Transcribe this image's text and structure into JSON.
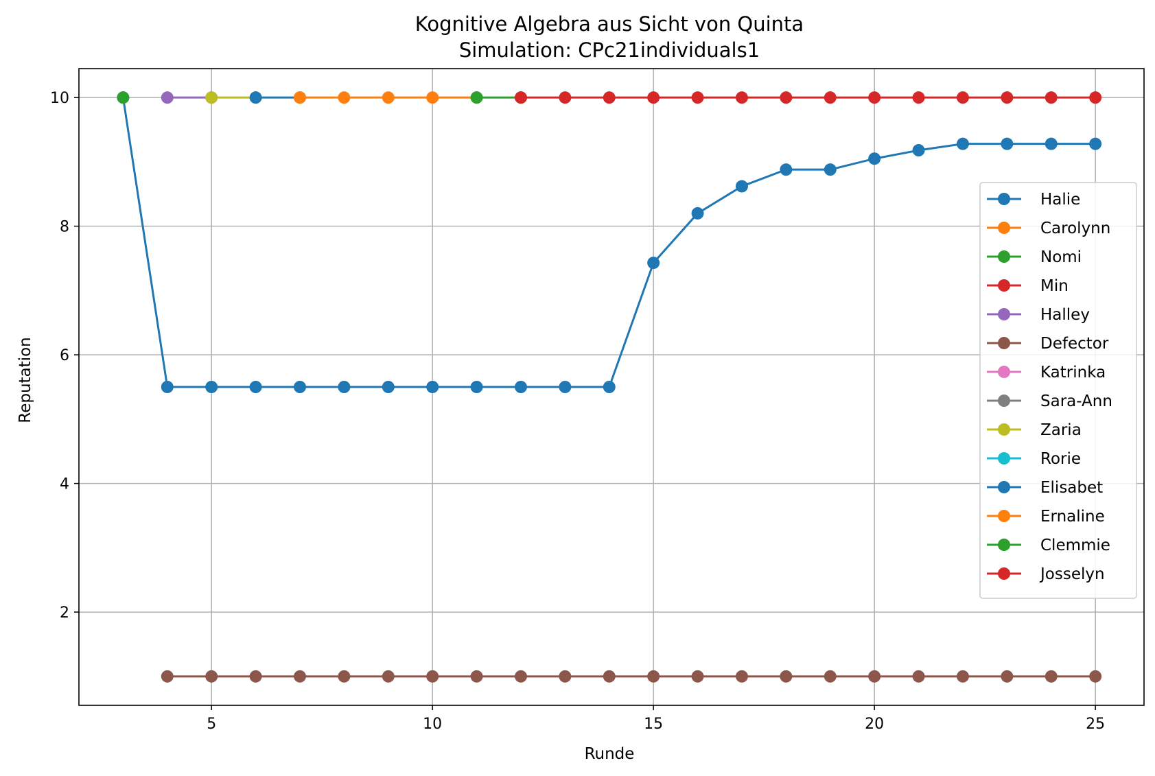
{
  "chart_data": {
    "type": "line",
    "title": "Kognitive Algebra aus Sicht von Quinta",
    "subtitle": "Simulation: CPc21individuals1",
    "xlabel": "Runde",
    "ylabel": "Reputation",
    "xlim": [
      2,
      26.1
    ],
    "ylim": [
      0.55,
      10.45
    ],
    "xticks": [
      5,
      10,
      15,
      20,
      25
    ],
    "yticks": [
      2,
      4,
      6,
      8,
      10
    ],
    "grid": true,
    "legend_position": "center-right",
    "series": [
      {
        "name": "Halie",
        "color": "#1f77b4",
        "x": [
          3,
          4,
          5,
          6,
          7,
          8,
          9,
          10,
          11,
          12,
          13,
          14,
          15,
          16,
          17,
          18,
          19,
          20,
          21,
          22,
          23,
          24,
          25
        ],
        "y": [
          10,
          5.5,
          5.5,
          5.5,
          5.5,
          5.5,
          5.5,
          5.5,
          5.5,
          5.5,
          5.5,
          5.5,
          7.43,
          8.2,
          8.62,
          8.88,
          8.88,
          9.05,
          9.18,
          9.28,
          9.28,
          9.28,
          9.28
        ]
      },
      {
        "name": "Carolynn",
        "color": "#ff7f0e",
        "x": [],
        "y": []
      },
      {
        "name": "Nomi",
        "color": "#2ca02c",
        "x": [
          3
        ],
        "y": [
          10
        ]
      },
      {
        "name": "Min",
        "color": "#d62728",
        "x": [],
        "y": []
      },
      {
        "name": "Halley",
        "color": "#9467bd",
        "x": [
          4,
          5
        ],
        "y": [
          10,
          10
        ]
      },
      {
        "name": "Defector",
        "color": "#8c564b",
        "x": [
          4,
          5,
          6,
          7,
          8,
          9,
          10,
          11,
          12,
          13,
          14,
          15,
          16,
          17,
          18,
          19,
          20,
          21,
          22,
          23,
          24,
          25
        ],
        "y": [
          1,
          1,
          1,
          1,
          1,
          1,
          1,
          1,
          1,
          1,
          1,
          1,
          1,
          1,
          1,
          1,
          1,
          1,
          1,
          1,
          1,
          1
        ]
      },
      {
        "name": "Katrinka",
        "color": "#e377c2",
        "x": [],
        "y": []
      },
      {
        "name": "Sara-Ann",
        "color": "#7f7f7f",
        "x": [],
        "y": []
      },
      {
        "name": "Zaria",
        "color": "#bcbd22",
        "x": [
          5,
          6
        ],
        "y": [
          10,
          10
        ]
      },
      {
        "name": "Rorie",
        "color": "#17becf",
        "x": [],
        "y": []
      },
      {
        "name": "Elisabet",
        "color": "#1f77b4",
        "x": [
          6,
          7
        ],
        "y": [
          10,
          10
        ]
      },
      {
        "name": "Ernaline",
        "color": "#ff7f0e",
        "x": [
          7,
          8,
          9,
          10,
          11
        ],
        "y": [
          10,
          10,
          10,
          10,
          10
        ]
      },
      {
        "name": "Clemmie",
        "color": "#2ca02c",
        "x": [
          11,
          12
        ],
        "y": [
          10,
          10
        ]
      },
      {
        "name": "Josselyn",
        "color": "#d62728",
        "x": [
          12,
          13,
          14,
          15,
          16,
          17,
          18,
          19,
          20,
          21,
          22,
          23,
          24,
          25
        ],
        "y": [
          10,
          10,
          10,
          10,
          10,
          10,
          10,
          10,
          10,
          10,
          10,
          10,
          10,
          10
        ]
      }
    ]
  }
}
